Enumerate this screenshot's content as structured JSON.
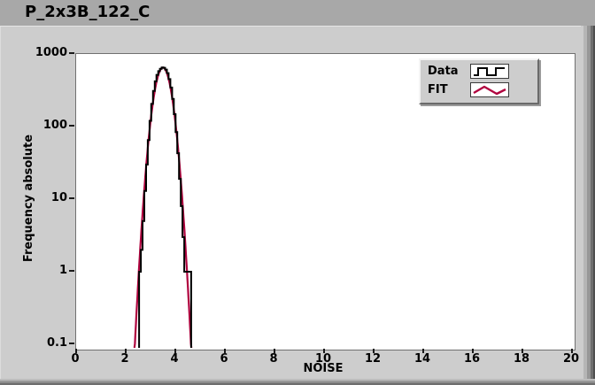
{
  "window": {
    "title": "P_2x3B_122_C"
  },
  "colors": {
    "titlebar": "#a8a8a8",
    "panel": "#cdcdcd",
    "plot_bg": "#ffffff",
    "data_line": "#000000",
    "fit_line": "#b0043f"
  },
  "legend": {
    "entries": [
      {
        "label": "Data",
        "glyph": "step-line-icon"
      },
      {
        "label": "FIT",
        "glyph": "zigzag-line-icon"
      }
    ]
  },
  "chart_data": {
    "type": "bar",
    "subtype": "histogram_with_fit",
    "title": "P_2x3B_122_C",
    "xlabel": "NOISE",
    "ylabel": "Frequency absolute",
    "x_ticks": [
      0,
      2,
      4,
      6,
      8,
      10,
      12,
      14,
      16,
      18,
      20
    ],
    "y_tick_labels": [
      "1000",
      "100",
      "10",
      "1",
      "0.1"
    ],
    "y_tick_values": [
      1000,
      100,
      10,
      1,
      0.1
    ],
    "xlim": [
      0,
      20
    ],
    "ylim": [
      0.1,
      1000
    ],
    "y_scale": "log",
    "grid": false,
    "legend_position": "top-right",
    "series": [
      {
        "name": "Data",
        "type": "step_histogram",
        "color": "#000000",
        "bin_start": 2.54,
        "bin_width": 0.07,
        "counts": [
          1,
          2,
          5,
          13,
          30,
          65,
          120,
          205,
          310,
          420,
          515,
          580,
          625,
          650,
          645,
          610,
          545,
          450,
          345,
          240,
          148,
          84,
          43,
          19,
          8,
          3,
          1,
          1,
          1,
          1
        ]
      },
      {
        "name": "FIT",
        "type": "gaussian_fit",
        "color": "#b0043f",
        "amplitude": 650,
        "mean": 3.5,
        "sigma": 0.27,
        "x_range": [
          2.35,
          4.65
        ]
      }
    ]
  }
}
